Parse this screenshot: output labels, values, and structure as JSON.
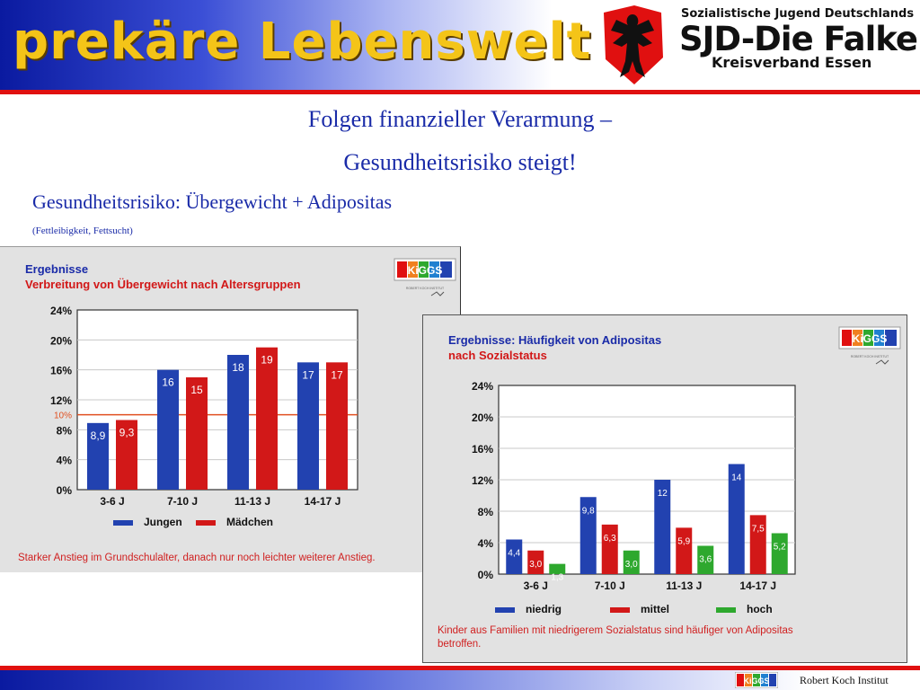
{
  "header": {
    "title": "prekäre Lebenswelt",
    "org_line1": "Sozialistische Jugend Deutschlands",
    "org_line2": "SJD-Die Falken",
    "org_line3": "Kreisverband Essen",
    "brand_yellow": "#f4c418",
    "brand_blue": "#0a1aa0",
    "brand_red": "#e01010"
  },
  "slide": {
    "subtitle_line1": "Folgen finanzieller Verarmung –",
    "subtitle_line2": "Gesundheitsrisiko steigt!",
    "heading": "Gesundheitsrisiko: Übergewicht + Adipositas",
    "note": "(Fettleibigkeit, Fettsucht)"
  },
  "chart_data": [
    {
      "type": "bar",
      "title": "Ergebnisse",
      "subtitle": "Verbreitung von Übergewicht nach Altersgruppen",
      "categories": [
        "3-6 J",
        "7-10 J",
        "11-13 J",
        "14-17 J"
      ],
      "series": [
        {
          "name": "Jungen",
          "values": [
            8.9,
            16,
            18,
            17
          ],
          "labels": [
            "8,9",
            "16",
            "18",
            "17"
          ],
          "color": "#2242b0"
        },
        {
          "name": "Mädchen",
          "values": [
            9.3,
            15,
            19,
            17
          ],
          "labels": [
            "9,3",
            "15",
            "19",
            "17"
          ],
          "color": "#d21818"
        }
      ],
      "ylim": [
        0,
        24
      ],
      "yticks": [
        "0%",
        "4%",
        "8%",
        "12%",
        "16%",
        "20%",
        "24%"
      ],
      "reference_line": {
        "value": 10,
        "label": "10%",
        "color": "#e05020"
      },
      "grid": true,
      "legend_position": "bottom",
      "footnote": "Starker Anstieg im Grundschulalter, danach nur noch leichter weiterer Anstieg."
    },
    {
      "type": "bar",
      "title": "Ergebnisse: Häufigkeit von Adipositas",
      "subtitle": "nach Sozialstatus",
      "categories": [
        "3-6 J",
        "7-10 J",
        "11-13 J",
        "14-17 J"
      ],
      "series": [
        {
          "name": "niedrig",
          "values": [
            4.4,
            9.8,
            12,
            14
          ],
          "labels": [
            "4,4",
            "9,8",
            "12",
            "14"
          ],
          "color": "#2242b0"
        },
        {
          "name": "mittel",
          "values": [
            3.0,
            6.3,
            5.9,
            7.5
          ],
          "labels": [
            "3,0",
            "6,3",
            "5,9",
            "7,5"
          ],
          "color": "#d21818"
        },
        {
          "name": "hoch",
          "values": [
            1.3,
            3.0,
            3.6,
            5.2
          ],
          "labels": [
            "1,3",
            "3,0",
            "3,6",
            "5,2"
          ],
          "color": "#2ea82e"
        }
      ],
      "ylim": [
        0,
        24
      ],
      "yticks": [
        "0%",
        "4%",
        "8%",
        "12%",
        "16%",
        "20%",
        "24%"
      ],
      "grid": true,
      "legend_position": "bottom",
      "footnote": "Kinder aus Familien mit niedrigerem Sozialstatus sind häufiger von Adipositas betroffen."
    }
  ],
  "kiggs_logo": {
    "text": "KiGGS",
    "caption": "ROBERT KOCH INSTITUT"
  },
  "footer": {
    "credit": "Robert Koch Institut"
  }
}
